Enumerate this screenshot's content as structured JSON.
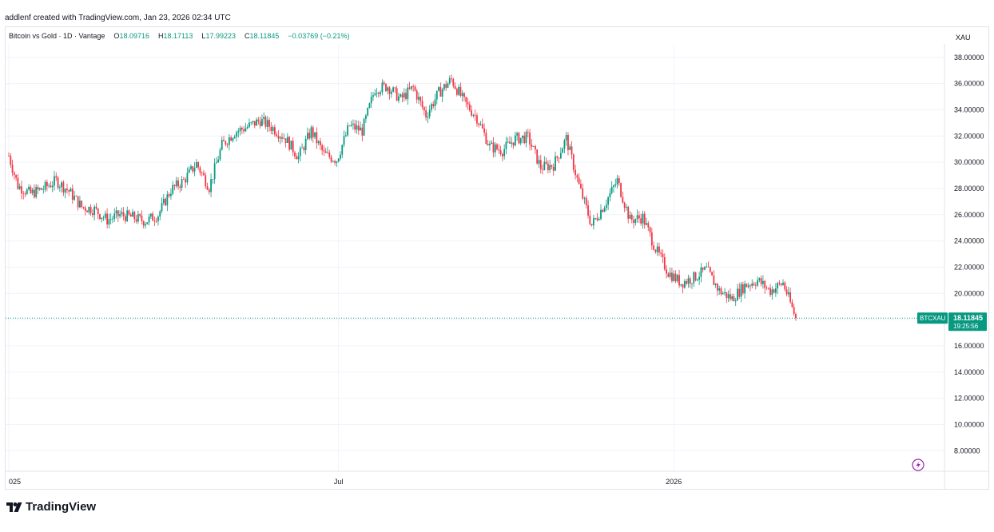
{
  "header": {
    "caption": "addlenf created with TradingView.com, Jan 23, 2026 02:34 UTC"
  },
  "legend": {
    "symbol_title": "Bitcoin vs Gold · 1D · Vantage",
    "open_label": "O",
    "open_value": "18.09716",
    "high_label": "H",
    "high_value": "18.17113",
    "low_label": "L",
    "low_value": "17.99223",
    "close_label": "C",
    "close_value": "18.11845",
    "change_value": "−0.03769 (−0.21%)"
  },
  "footer": {
    "brand": "TradingView",
    "logo_icon": "tradingview-logo-icon"
  },
  "chart_data": {
    "type": "candlestick",
    "symbol": "BTCXAU",
    "currency": "XAU",
    "ylim": [
      7,
      39
    ],
    "y_ticks": [
      8,
      10,
      12,
      14,
      16,
      18,
      20,
      22,
      24,
      26,
      28,
      30,
      32,
      34,
      36,
      38
    ],
    "y_tick_labels": [
      "8.00000",
      "10.00000",
      "12.00000",
      "14.00000",
      "16.00000",
      "18.00000",
      "20.00000",
      "22.00000",
      "24.00000",
      "26.00000",
      "28.00000",
      "30.00000",
      "32.00000",
      "34.00000",
      "36.00000",
      "38.00000"
    ],
    "x_labels": [
      {
        "label": "025",
        "date": "2025-01-01"
      },
      {
        "label": "Jul",
        "date": "2025-07-01"
      },
      {
        "label": "2026",
        "date": "2026-01-01"
      }
    ],
    "last_price": {
      "label": "BTCXAU",
      "value": "18.11845",
      "countdown": "19:25:56"
    },
    "colors": {
      "up": "#089981",
      "down": "#f23645",
      "grid": "#f0f3fa",
      "price_line": "#089981",
      "replay": "#9c27b0"
    },
    "replay_icon": "lightning-icon",
    "grid": true,
    "start_date": "2025-01-01",
    "close_series": [
      {
        "date": "2025-01-01",
        "close": 30.5
      },
      {
        "date": "2025-01-06",
        "close": 28.2
      },
      {
        "date": "2025-01-13",
        "close": 27.6
      },
      {
        "date": "2025-01-20",
        "close": 28.0
      },
      {
        "date": "2025-01-27",
        "close": 28.6
      },
      {
        "date": "2025-02-03",
        "close": 27.8
      },
      {
        "date": "2025-02-10",
        "close": 26.6
      },
      {
        "date": "2025-02-17",
        "close": 26.4
      },
      {
        "date": "2025-02-24",
        "close": 25.6
      },
      {
        "date": "2025-03-03",
        "close": 26.0
      },
      {
        "date": "2025-03-10",
        "close": 25.8
      },
      {
        "date": "2025-03-17",
        "close": 25.5
      },
      {
        "date": "2025-03-24",
        "close": 26.0
      },
      {
        "date": "2025-03-31",
        "close": 27.9
      },
      {
        "date": "2025-04-07",
        "close": 28.6
      },
      {
        "date": "2025-04-14",
        "close": 29.9
      },
      {
        "date": "2025-04-21",
        "close": 28.1
      },
      {
        "date": "2025-04-28",
        "close": 31.3
      },
      {
        "date": "2025-05-05",
        "close": 32.3
      },
      {
        "date": "2025-05-12",
        "close": 32.7
      },
      {
        "date": "2025-05-19",
        "close": 33.2
      },
      {
        "date": "2025-05-26",
        "close": 32.6
      },
      {
        "date": "2025-06-02",
        "close": 31.8
      },
      {
        "date": "2025-06-09",
        "close": 30.4
      },
      {
        "date": "2025-06-16",
        "close": 32.4
      },
      {
        "date": "2025-06-23",
        "close": 30.6
      },
      {
        "date": "2025-06-30",
        "close": 30.2
      },
      {
        "date": "2025-07-07",
        "close": 32.8
      },
      {
        "date": "2025-07-14",
        "close": 32.4
      },
      {
        "date": "2025-07-21",
        "close": 35.6
      },
      {
        "date": "2025-07-28",
        "close": 35.8
      },
      {
        "date": "2025-08-04",
        "close": 34.8
      },
      {
        "date": "2025-08-11",
        "close": 35.7
      },
      {
        "date": "2025-08-18",
        "close": 33.6
      },
      {
        "date": "2025-08-25",
        "close": 35.3
      },
      {
        "date": "2025-09-01",
        "close": 36.3
      },
      {
        "date": "2025-09-08",
        "close": 34.6
      },
      {
        "date": "2025-09-15",
        "close": 33.4
      },
      {
        "date": "2025-09-22",
        "close": 31.2
      },
      {
        "date": "2025-09-29",
        "close": 30.9
      },
      {
        "date": "2025-10-06",
        "close": 31.8
      },
      {
        "date": "2025-10-13",
        "close": 31.9
      },
      {
        "date": "2025-10-20",
        "close": 29.6
      },
      {
        "date": "2025-10-27",
        "close": 29.8
      },
      {
        "date": "2025-11-03",
        "close": 31.8
      },
      {
        "date": "2025-11-10",
        "close": 28.2
      },
      {
        "date": "2025-11-17",
        "close": 25.2
      },
      {
        "date": "2025-11-24",
        "close": 26.8
      },
      {
        "date": "2025-12-01",
        "close": 28.6
      },
      {
        "date": "2025-12-08",
        "close": 25.6
      },
      {
        "date": "2025-12-15",
        "close": 25.8
      },
      {
        "date": "2025-12-22",
        "close": 23.4
      },
      {
        "date": "2025-12-29",
        "close": 21.6
      },
      {
        "date": "2026-01-05",
        "close": 20.8
      },
      {
        "date": "2026-01-12",
        "close": 21.2
      },
      {
        "date": "2026-01-19",
        "close": 21.8
      },
      {
        "date": "2026-01-26",
        "close": 20.2
      },
      {
        "date": "2026-02-02",
        "close": 19.6
      },
      {
        "date": "2026-02-09",
        "close": 20.6
      },
      {
        "date": "2026-02-16",
        "close": 21.0
      },
      {
        "date": "2026-02-23",
        "close": 20.2
      },
      {
        "date": "2026-03-02",
        "close": 20.8
      },
      {
        "date": "2026-03-09",
        "close": 18.1
      }
    ]
  }
}
